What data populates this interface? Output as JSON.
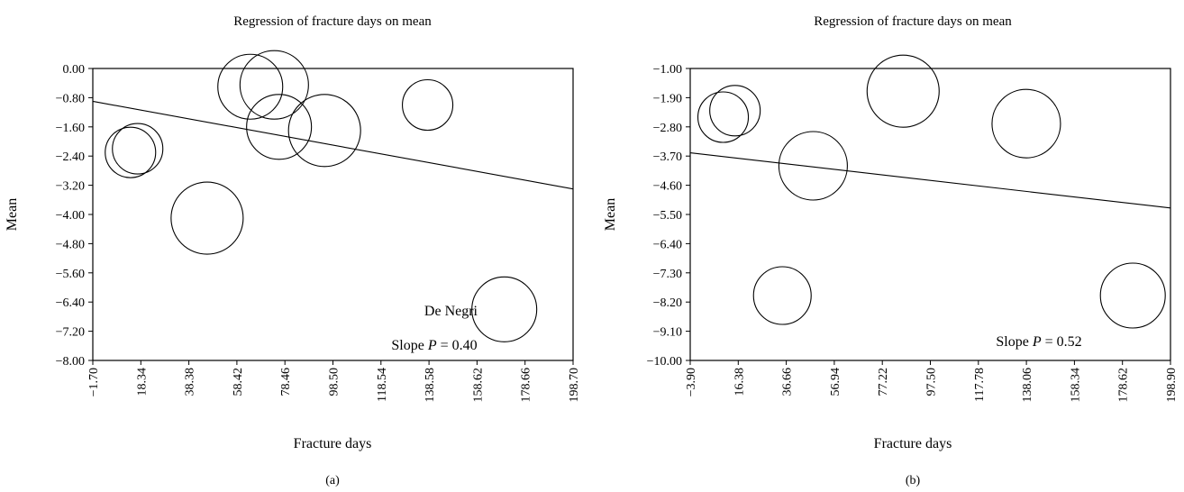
{
  "chart_data": [
    {
      "type": "scatter",
      "panel_label": "(a)",
      "title": "Regression of fracture days on mean",
      "xlabel": "Fracture days",
      "ylabel": "Mean",
      "xlim": [
        -1.7,
        198.7
      ],
      "ylim": [
        -8.0,
        0.0
      ],
      "xticks": [
        "−1.70",
        "18.34",
        "38.38",
        "58.42",
        "78.46",
        "98.50",
        "118.54",
        "138.58",
        "158.62",
        "178.66",
        "198.70"
      ],
      "yticks": [
        "0.00",
        "−0.80",
        "−1.60",
        "−2.40",
        "−3.20",
        "−4.00",
        "−4.80",
        "−5.60",
        "−6.40",
        "−7.20",
        "−8.00"
      ],
      "points": [
        {
          "x": 14,
          "y": -2.3,
          "r": 14
        },
        {
          "x": 17,
          "y": -2.2,
          "r": 14
        },
        {
          "x": 46,
          "y": -4.1,
          "r": 20
        },
        {
          "x": 64,
          "y": -0.5,
          "r": 18
        },
        {
          "x": 74,
          "y": -0.45,
          "r": 19
        },
        {
          "x": 76,
          "y": -1.6,
          "r": 18
        },
        {
          "x": 95,
          "y": -1.7,
          "r": 20
        },
        {
          "x": 138,
          "y": -1.0,
          "r": 14
        },
        {
          "x": 170,
          "y": -6.6,
          "r": 18
        }
      ],
      "regression": {
        "x": [
          -1.7,
          198.7
        ],
        "y": [
          -0.9,
          -3.3
        ]
      },
      "annotations": [
        {
          "text": "De Negri",
          "x": 154,
          "y": -6.25
        }
      ],
      "slope_label": {
        "prefix": "Slope ",
        "italic": "P",
        "suffix": " = 0.40"
      }
    },
    {
      "type": "scatter",
      "panel_label": "(b)",
      "title": "Regression of fracture days on mean",
      "xlabel": "Fracture days",
      "ylabel": "Mean",
      "xlim": [
        -3.9,
        198.9
      ],
      "ylim": [
        -10.0,
        -1.0
      ],
      "xticks": [
        "−3.90",
        "16.38",
        "36.66",
        "56.94",
        "77.22",
        "97.50",
        "117.78",
        "138.06",
        "158.34",
        "178.62",
        "198.90"
      ],
      "yticks": [
        "−1.00",
        "−1.90",
        "−2.80",
        "−3.70",
        "−4.60",
        "−5.50",
        "−6.40",
        "−7.30",
        "−8.20",
        "−9.10",
        "−10.00"
      ],
      "points": [
        {
          "x": 10,
          "y": -2.5,
          "r": 14
        },
        {
          "x": 15,
          "y": -2.3,
          "r": 14
        },
        {
          "x": 35,
          "y": -8.0,
          "r": 16
        },
        {
          "x": 48,
          "y": -4.0,
          "r": 19
        },
        {
          "x": 86,
          "y": -1.7,
          "r": 20
        },
        {
          "x": 138,
          "y": -2.7,
          "r": 19
        },
        {
          "x": 183,
          "y": -8.0,
          "r": 18
        }
      ],
      "regression": {
        "x": [
          -3.9,
          198.9
        ],
        "y": [
          -3.6,
          -5.3
        ]
      },
      "annotations": [],
      "slope_label": {
        "prefix": "Slope ",
        "italic": "P",
        "suffix": " = 0.52"
      }
    }
  ]
}
